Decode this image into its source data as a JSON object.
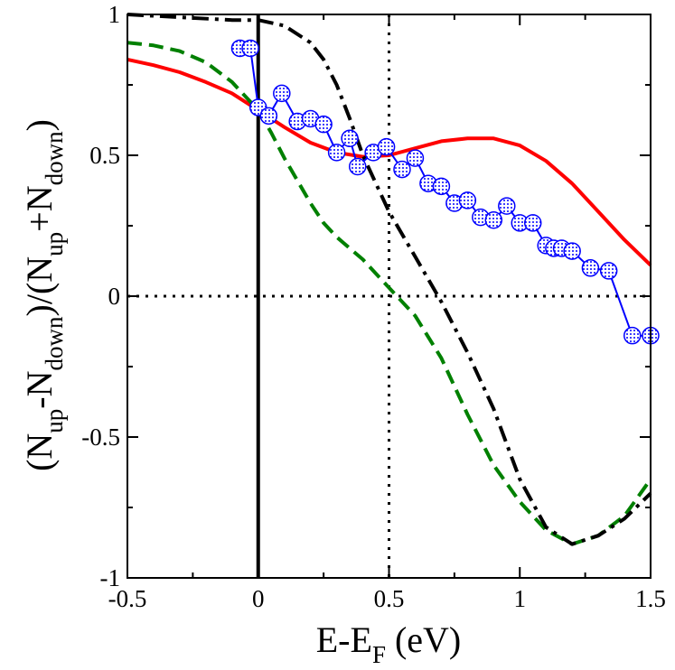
{
  "chart_data": {
    "type": "line",
    "title": "",
    "xlabel": {
      "main": "E-E",
      "sub": "F",
      "tail": " (eV)"
    },
    "ylabel": {
      "parts": [
        {
          "t": "(N",
          "s": "main"
        },
        {
          "t": "up",
          "s": "sub"
        },
        {
          "t": "-N",
          "s": "main"
        },
        {
          "t": "down",
          "s": "sub"
        },
        {
          "t": ")/(N",
          "s": "main"
        },
        {
          "t": "up",
          "s": "sub"
        },
        {
          "t": "+N",
          "s": "main"
        },
        {
          "t": "down",
          "s": "sub"
        },
        {
          "t": ")",
          "s": "main"
        }
      ]
    },
    "xlim": [
      -0.5,
      1.5
    ],
    "ylim": [
      -1,
      1
    ],
    "xticks": [
      -0.5,
      0,
      0.5,
      1,
      1.5
    ],
    "xtick_labels": [
      "-0.5",
      "0",
      "0.5",
      "1",
      "1.5"
    ],
    "yticks": [
      -1,
      -0.5,
      0,
      0.5,
      1
    ],
    "ytick_labels": [
      "-1",
      "-0.5",
      "0",
      "0.5",
      "1"
    ],
    "reference_lines": [
      {
        "orientation": "vertical",
        "value": 0,
        "style": "solid"
      },
      {
        "orientation": "vertical",
        "value": 0.5,
        "style": "dotted"
      },
      {
        "orientation": "horizontal",
        "value": 0,
        "style": "dotted"
      }
    ],
    "series": [
      {
        "name": "solid-red",
        "color": "#ff0000",
        "style": "solid",
        "x": [
          -0.5,
          -0.4,
          -0.3,
          -0.2,
          -0.1,
          0.0,
          0.1,
          0.2,
          0.3,
          0.4,
          0.5,
          0.6,
          0.7,
          0.8,
          0.9,
          1.0,
          1.1,
          1.2,
          1.3,
          1.4,
          1.5
        ],
        "y": [
          0.84,
          0.82,
          0.795,
          0.76,
          0.72,
          0.66,
          0.6,
          0.545,
          0.51,
          0.495,
          0.5,
          0.525,
          0.55,
          0.56,
          0.56,
          0.535,
          0.48,
          0.4,
          0.3,
          0.2,
          0.11
        ]
      },
      {
        "name": "dashed-green",
        "color": "#008000",
        "style": "dashed",
        "x": [
          -0.5,
          -0.4,
          -0.3,
          -0.2,
          -0.1,
          0.0,
          0.05,
          0.1,
          0.15,
          0.2,
          0.25,
          0.3,
          0.35,
          0.4,
          0.45,
          0.5,
          0.55,
          0.6,
          0.7,
          0.8,
          0.9,
          1.0,
          1.1,
          1.2,
          1.3,
          1.4,
          1.5
        ],
        "y": [
          0.9,
          0.89,
          0.87,
          0.83,
          0.76,
          0.66,
          0.58,
          0.49,
          0.41,
          0.33,
          0.26,
          0.21,
          0.17,
          0.13,
          0.08,
          0.03,
          -0.02,
          -0.07,
          -0.22,
          -0.42,
          -0.6,
          -0.73,
          -0.83,
          -0.88,
          -0.85,
          -0.78,
          -0.65
        ]
      },
      {
        "name": "dash-dot-black",
        "color": "#000000",
        "style": "dashdot",
        "x": [
          -0.5,
          -0.3,
          -0.1,
          0.0,
          0.1,
          0.2,
          0.25,
          0.3,
          0.35,
          0.4,
          0.45,
          0.5,
          0.55,
          0.6,
          0.7,
          0.8,
          0.9,
          1.0,
          1.1,
          1.2,
          1.3,
          1.4,
          1.5
        ],
        "y": [
          1.0,
          0.99,
          0.98,
          0.98,
          0.96,
          0.9,
          0.84,
          0.75,
          0.63,
          0.5,
          0.4,
          0.3,
          0.22,
          0.14,
          -0.02,
          -0.2,
          -0.4,
          -0.65,
          -0.82,
          -0.88,
          -0.85,
          -0.79,
          -0.7
        ]
      },
      {
        "name": "circles-blue",
        "color": "#0000ff",
        "style": "solid",
        "marker": "circle",
        "x": [
          -0.07,
          -0.03,
          0.0,
          0.04,
          0.09,
          0.15,
          0.2,
          0.25,
          0.3,
          0.35,
          0.38,
          0.44,
          0.49,
          0.55,
          0.6,
          0.65,
          0.7,
          0.75,
          0.8,
          0.85,
          0.9,
          0.95,
          1.0,
          1.05,
          1.1,
          1.13,
          1.16,
          1.2,
          1.27,
          1.34,
          1.43,
          1.5
        ],
        "y": [
          0.88,
          0.88,
          0.67,
          0.64,
          0.72,
          0.62,
          0.63,
          0.61,
          0.51,
          0.56,
          0.46,
          0.51,
          0.53,
          0.45,
          0.49,
          0.4,
          0.39,
          0.33,
          0.34,
          0.28,
          0.27,
          0.32,
          0.26,
          0.26,
          0.18,
          0.17,
          0.17,
          0.16,
          0.1,
          0.09,
          -0.14,
          -0.14
        ]
      }
    ]
  }
}
